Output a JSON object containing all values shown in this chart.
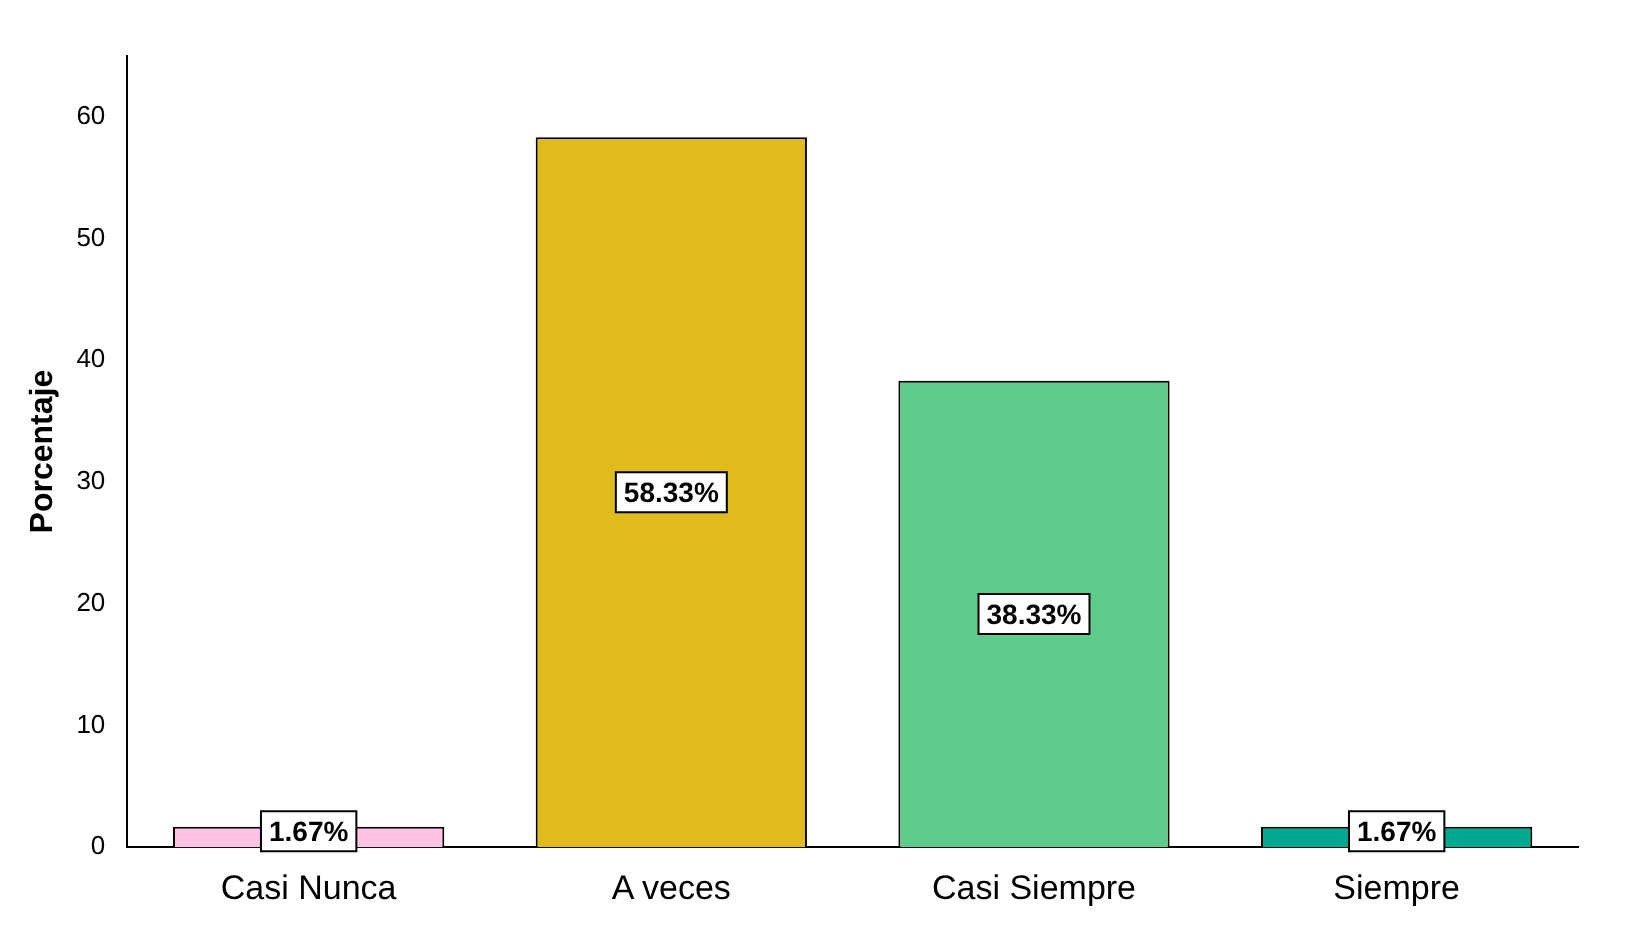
{
  "chart_data": {
    "type": "bar",
    "ylabel": "Porcentaje",
    "categories": [
      "Casi Nunca",
      "A veces",
      "Casi Siempre",
      "Siempre"
    ],
    "values": [
      1.67,
      58.33,
      38.33,
      1.67
    ],
    "colors": [
      "#ffc4e4",
      "#e0bb1e",
      "#5ecb8a",
      "#00a88e"
    ],
    "value_labels": [
      "1.67%",
      "58.33%",
      "38.33%",
      "1.67%"
    ],
    "ylim": [
      0,
      65
    ],
    "yticks": [
      0,
      10,
      20,
      30,
      40,
      50,
      60
    ],
    "grid": false,
    "legend": false
  }
}
